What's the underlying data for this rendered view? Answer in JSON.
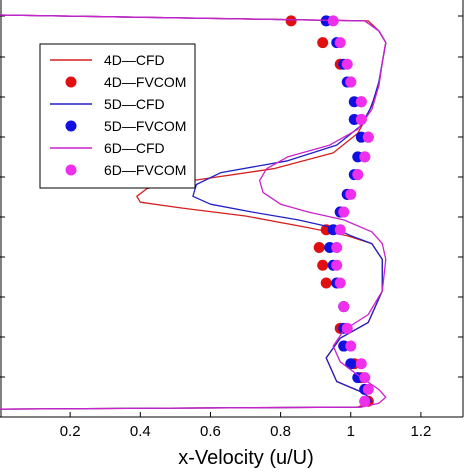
{
  "chart_data": {
    "type": "line",
    "xlabel": "x-Velocity (u/U)",
    "ylabel": "",
    "title": "",
    "xlim": [
      0.0,
      1.32
    ],
    "ylim": [
      -0.02,
      1.0
    ],
    "x_ticks": [
      0.2,
      0.4,
      0.6,
      0.8,
      1,
      1.2
    ],
    "x_tick_labels": [
      "0.2",
      "0.4",
      "0.6",
      "0.8",
      "1",
      "1.2"
    ],
    "legend_position": "top-left",
    "series": [
      {
        "name": "4D—CFD",
        "kind": "line",
        "color": "#d62020",
        "x": [
          0.0,
          1.02,
          1.06,
          1.04,
          0.96,
          0.93,
          0.97,
          1.05,
          1.09,
          1.09,
          1.06,
          0.99,
          0.88,
          0.7,
          0.52,
          0.4,
          0.39,
          0.42,
          0.55,
          0.78,
          0.95,
          1.02,
          1.05,
          1.08,
          1.09,
          1.1,
          1.08,
          1.05,
          0.0
        ],
        "y": [
          0.0,
          0.005,
          0.02,
          0.04,
          0.07,
          0.13,
          0.18,
          0.22,
          0.3,
          0.38,
          0.42,
          0.44,
          0.46,
          0.49,
          0.51,
          0.525,
          0.54,
          0.56,
          0.58,
          0.61,
          0.65,
          0.7,
          0.75,
          0.82,
          0.88,
          0.93,
          0.96,
          0.985,
          1.0
        ]
      },
      {
        "name": "4D—FVCOM",
        "kind": "marker",
        "color": "#e01010",
        "x": [
          1.05,
          1.04,
          1.03,
          1.01,
          0.98,
          0.97,
          0.98,
          0.93,
          0.92,
          0.91,
          0.93,
          0.97,
          0.99,
          1.02,
          1.04,
          1.05,
          1.03,
          1.03,
          1.0,
          0.97,
          0.92,
          0.83
        ],
        "y": [
          0.02,
          0.05,
          0.08,
          0.115,
          0.16,
          0.205,
          0.26,
          0.32,
          0.365,
          0.41,
          0.455,
          0.5,
          0.545,
          0.595,
          0.64,
          0.69,
          0.735,
          0.78,
          0.83,
          0.875,
          0.93,
          0.985
        ]
      },
      {
        "name": "5D—CFD",
        "kind": "line",
        "color": "#2020c8",
        "x": [
          0.0,
          1.03,
          1.06,
          1.04,
          0.96,
          0.93,
          0.97,
          1.05,
          1.09,
          1.09,
          1.06,
          1.0,
          0.95,
          0.85,
          0.72,
          0.6,
          0.55,
          0.56,
          0.63,
          0.82,
          0.96,
          1.03,
          1.06,
          1.08,
          1.09,
          1.1,
          1.08,
          1.04,
          0.0
        ],
        "y": [
          0.0,
          0.005,
          0.02,
          0.04,
          0.07,
          0.13,
          0.18,
          0.22,
          0.3,
          0.38,
          0.42,
          0.44,
          0.46,
          0.48,
          0.5,
          0.52,
          0.54,
          0.57,
          0.6,
          0.63,
          0.67,
          0.72,
          0.77,
          0.83,
          0.88,
          0.93,
          0.96,
          0.985,
          1.0
        ]
      },
      {
        "name": "5D—FVCOM",
        "kind": "marker",
        "color": "#1010e0",
        "x": [
          1.04,
          1.04,
          1.02,
          1.0,
          0.98,
          0.98,
          0.98,
          0.96,
          0.95,
          0.94,
          0.95,
          0.97,
          0.99,
          1.01,
          1.02,
          1.03,
          1.01,
          1.01,
          0.99,
          0.98,
          0.96,
          0.93
        ],
        "y": [
          0.02,
          0.05,
          0.08,
          0.115,
          0.16,
          0.205,
          0.26,
          0.32,
          0.365,
          0.41,
          0.455,
          0.5,
          0.545,
          0.595,
          0.64,
          0.69,
          0.735,
          0.78,
          0.83,
          0.875,
          0.93,
          0.985
        ]
      },
      {
        "name": "6D—CFD",
        "kind": "line",
        "color": "#cc22cc",
        "x": [
          0.0,
          1.03,
          1.08,
          1.1,
          1.08,
          1.03,
          0.97,
          0.95,
          0.98,
          1.05,
          1.09,
          1.1,
          1.09,
          1.06,
          0.98,
          0.88,
          0.8,
          0.75,
          0.74,
          0.76,
          0.82,
          0.94,
          1.02,
          1.06,
          1.08,
          1.09,
          1.1,
          1.08,
          1.04,
          0.0
        ],
        "y": [
          0.0,
          0.005,
          0.015,
          0.03,
          0.05,
          0.08,
          0.12,
          0.16,
          0.2,
          0.24,
          0.3,
          0.38,
          0.42,
          0.45,
          0.48,
          0.5,
          0.52,
          0.55,
          0.58,
          0.61,
          0.64,
          0.67,
          0.71,
          0.76,
          0.82,
          0.88,
          0.93,
          0.96,
          0.985,
          1.0
        ]
      },
      {
        "name": "6D—FVCOM",
        "kind": "marker",
        "color": "#ee30ee",
        "x": [
          1.04,
          1.05,
          1.04,
          1.03,
          1.0,
          0.99,
          0.98,
          0.97,
          0.96,
          0.96,
          0.97,
          0.98,
          1.0,
          1.02,
          1.04,
          1.05,
          1.03,
          1.03,
          1.0,
          0.99,
          0.97,
          0.95
        ],
        "y": [
          0.02,
          0.05,
          0.08,
          0.115,
          0.16,
          0.205,
          0.26,
          0.32,
          0.365,
          0.41,
          0.455,
          0.5,
          0.545,
          0.595,
          0.64,
          0.69,
          0.735,
          0.78,
          0.83,
          0.875,
          0.93,
          0.985
        ]
      }
    ]
  }
}
